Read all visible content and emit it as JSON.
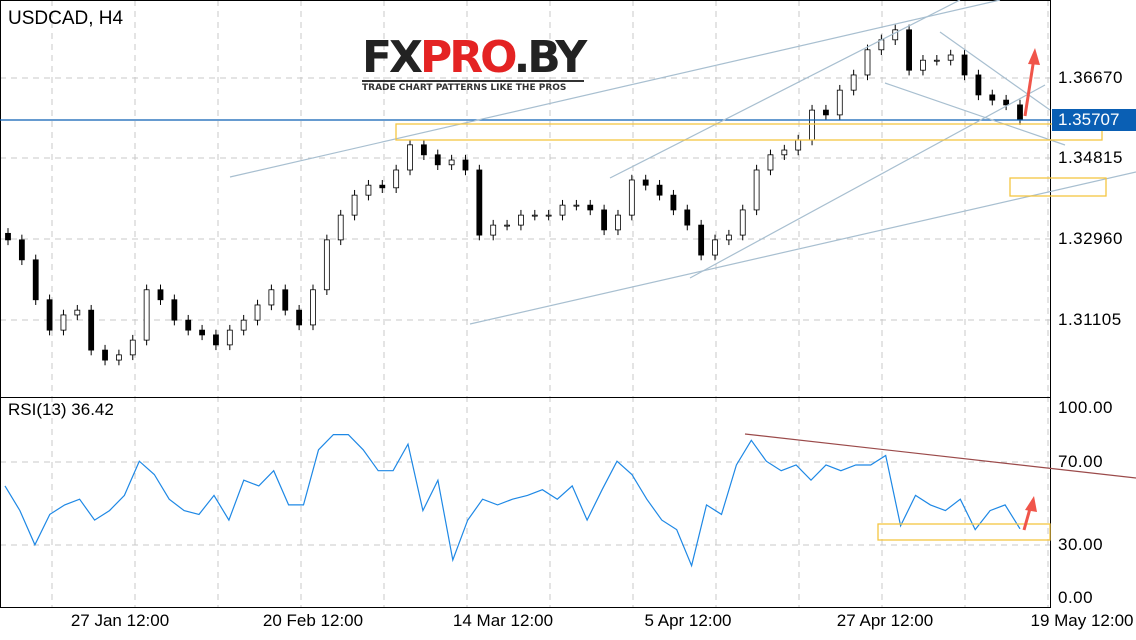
{
  "header": {
    "symbol_timeframe": "USDCAD, H4"
  },
  "logo": {
    "part1": "FX",
    "part2": "PRO",
    "part3": ".BY",
    "tagline": "TRADE CHART PATTERNS LIKE THE PROS"
  },
  "colors": {
    "candles": "#000000",
    "rsi_line": "#1e88e5",
    "current_price_line": "#0a5fb4",
    "trendlines": "#a8bfd0",
    "zones": "#f5c542",
    "arrow": "#f0554a",
    "rsi_trendline": "#9b4a4a"
  },
  "chart_data": [
    {
      "type": "candlestick",
      "title": "USDCAD, H4",
      "ylim": [
        1.2935,
        1.386
      ],
      "yticks": [
        "1.36670",
        "1.34815",
        "1.32960",
        "1.31105"
      ],
      "current_price": "1.35707",
      "xticks": [
        "27 Jan 12:00",
        "20 Feb 12:00",
        "14 Mar 12:00",
        "5 Apr 12:00",
        "27 Apr 12:00",
        "19 May 12:00"
      ],
      "close": [
        1.3294,
        1.3248,
        1.3156,
        1.3086,
        1.3121,
        1.3132,
        1.304,
        1.3017,
        1.3029,
        1.3063,
        1.3179,
        1.3156,
        1.3109,
        1.3086,
        1.3075,
        1.3052,
        1.3086,
        1.3109,
        1.3144,
        1.3179,
        1.3132,
        1.3098,
        1.3179,
        1.3294,
        1.3351,
        1.3397,
        1.342,
        1.3414,
        1.3455,
        1.3513,
        1.349,
        1.3467,
        1.3478,
        1.3455,
        1.3305,
        1.3328,
        1.3328,
        1.3351,
        1.3351,
        1.3351,
        1.3374,
        1.3374,
        1.3363,
        1.3317,
        1.3351,
        1.3432,
        1.342,
        1.3397,
        1.3363,
        1.3328,
        1.3259,
        1.3294,
        1.3305,
        1.3363,
        1.3455,
        1.349,
        1.3501,
        1.3524,
        1.3593,
        1.3582,
        1.3639,
        1.3674,
        1.3732,
        1.3755,
        1.3778,
        1.3685,
        1.3708,
        1.3708,
        1.372,
        1.3674,
        1.3628,
        1.3616,
        1.3605,
        1.3571
      ]
    },
    {
      "type": "line",
      "title": "RSI(13) 36.42",
      "ylim": [
        0,
        100
      ],
      "yticks": [
        "100.00",
        "70.00",
        "30.00",
        "0.00"
      ],
      "values": [
        59,
        46,
        28,
        44,
        49,
        52,
        41,
        46,
        54,
        72,
        65,
        52,
        46,
        44,
        54,
        41,
        62,
        59,
        67,
        49,
        49,
        78,
        86,
        86,
        78,
        67,
        67,
        81,
        46,
        62,
        20,
        41,
        52,
        49,
        52,
        54,
        57,
        52,
        59,
        41,
        57,
        72,
        65,
        52,
        41,
        36,
        17,
        49,
        44,
        70,
        83,
        72,
        67,
        70,
        62,
        70,
        67,
        70,
        70,
        75,
        38,
        54,
        49,
        46,
        52,
        36,
        46,
        49,
        36.42
      ]
    }
  ]
}
